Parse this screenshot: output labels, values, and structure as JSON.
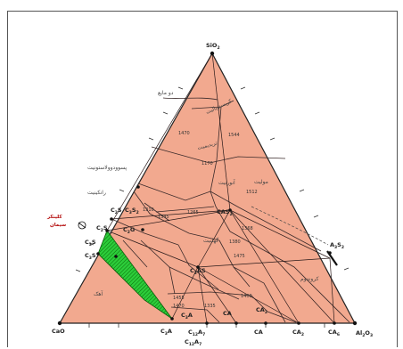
{
  "diagram": {
    "vertices": {
      "top": "SiO",
      "top_sub": "2",
      "left": "CaO",
      "right": "Al",
      "right_sub1": "2",
      "right_mid": "O",
      "right_sub2": "3"
    },
    "compound_labels": {
      "c2s_a": "C",
      "c2s_a_sub": "2",
      "c2s_a_end": "S",
      "c3s2": "C",
      "c3s2_sub": "3",
      "c3s2_s": "S",
      "c3s2_sub2": "2",
      "c2s": "C",
      "c2s_sub": "2",
      "c2s_s": "S",
      "c3s_a": "C",
      "c3s_a_sub": "3",
      "c3s_a_s": "S",
      "c3s_b": "C",
      "c3s_b_sub": "3",
      "c3s_b_s": "S",
      "c2g": "C",
      "c2g_sub": "2",
      "c2g_s": "G",
      "cas2": "CAS",
      "cas2_sub": "2",
      "a3s2": "A",
      "a3s2_sub": "3",
      "a3s2_s": "S",
      "a3s2_sub2": "2",
      "c2as": "C",
      "c2as_sub": "2",
      "c2as_s": "AS",
      "c3a_in": "C",
      "c3a_in_sub": "3",
      "c3a_in_s": "A",
      "ca_in": "CA",
      "ca2_in": "CA",
      "ca2_in_sub": "2",
      "c3a": "C",
      "c3a_sub": "3",
      "c3a_s": "A",
      "c12a7": "C",
      "c12a7_sub": "12",
      "c12a7_s": "A",
      "c12a7_sub2": "7",
      "c12a7_b": "C",
      "c12a7_b_sub": "12",
      "c12a7_b_s": "A",
      "c12a7_b_sub2": "7",
      "ca": "CA",
      "ca2": "CA",
      "ca2_sub": "2",
      "ca6": "CA",
      "ca6_sub": "6"
    },
    "temperature_labels": [
      "1470",
      "1544",
      "1170",
      "1512",
      "1310",
      "1265",
      "1345",
      "1368",
      "1475",
      "1380",
      "1400",
      "1455",
      "1335",
      "1470"
    ],
    "persian_labels": {
      "two_liquid": "دو مایع",
      "cristobalite": "کریستوبالیت",
      "tridymite": "تریدیمیت",
      "pseudowollastonite": "پسوودوولاستونیت",
      "rankinite": "رانکینیت",
      "anorthite": "آنورتیت",
      "mullite": "مولیت",
      "gehlenite": "گهلنیت",
      "corundum": "کروندوم",
      "lime": "آهک",
      "clinker_area": "کلینکر",
      "clinker_area_2": "سیمان"
    }
  }
}
